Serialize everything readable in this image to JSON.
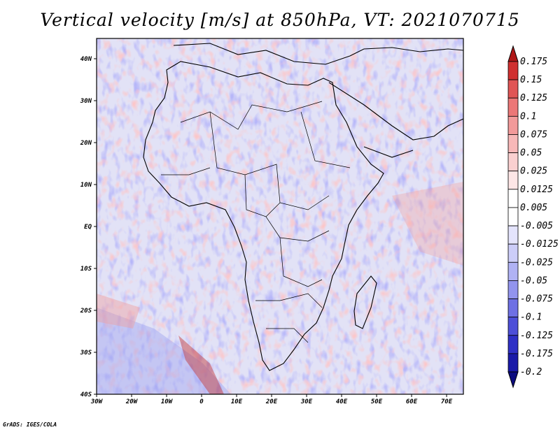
{
  "title": "Vertical velocity [m/s] at 850hPa, VT: 2021070715",
  "credit": "GrADS: IGES/COLA",
  "lat_ticks": [
    "40N",
    "30N",
    "20N",
    "10N",
    "EQ",
    "10S",
    "20S",
    "30S",
    "40S"
  ],
  "lon_ticks": [
    "30W",
    "20W",
    "10W",
    "0",
    "10E",
    "20E",
    "30E",
    "40E",
    "50E",
    "60E",
    "70E"
  ],
  "map_extent": {
    "lon": [
      -30,
      75
    ],
    "lat": [
      -40,
      45
    ]
  },
  "colorbar": {
    "levels": [
      "0.175",
      "0.15",
      "0.125",
      "0.1",
      "0.075",
      "0.05",
      "0.025",
      "0.0125",
      "0.005",
      "-0.005",
      "-0.0125",
      "-0.025",
      "-0.05",
      "-0.075",
      "-0.1",
      "-0.125",
      "-0.175",
      "-0.2"
    ],
    "colors": [
      "#b01818",
      "#d03030",
      "#e05555",
      "#ec7777",
      "#f29a9a",
      "#f7b8b8",
      "#fad0d0",
      "#fde6e6",
      "#ffffff",
      "#ffffff",
      "#e4e4fc",
      "#cccdf8",
      "#b0b2f4",
      "#9294ee",
      "#6e70e4",
      "#4d4fd8",
      "#2f30c6",
      "#1a1aa8",
      "#0c0c80"
    ]
  }
}
